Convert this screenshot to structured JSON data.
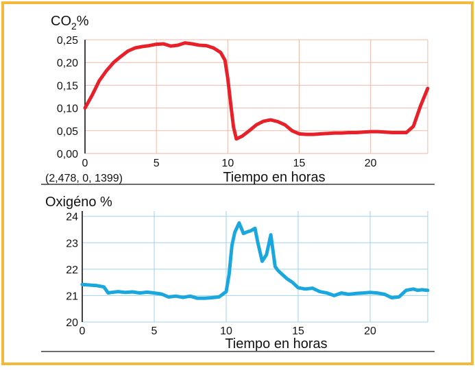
{
  "border_color": "#f2b93a",
  "chart_data": [
    {
      "type": "line",
      "title": "CO2%",
      "title_parts": {
        "prefix": "CO",
        "subscript": "2",
        "suffix": "%"
      },
      "xlabel": "Tiempo en horas",
      "ylabel": "",
      "annotation": "(2,478, 0, 1399)",
      "xlim": [
        0,
        24
      ],
      "ylim": [
        0,
        0.25
      ],
      "xticks": [
        0,
        5,
        10,
        15,
        20
      ],
      "xtick_labels": [
        "0",
        "5",
        "10",
        "15",
        "20"
      ],
      "yticks": [
        0,
        0.05,
        0.1,
        0.15,
        0.2,
        0.25
      ],
      "ytick_labels": [
        "0,00",
        "0,05",
        "0,10",
        "0,15",
        "0,20",
        "0,25"
      ],
      "grid": true,
      "grid_color": "#f0b8a8",
      "series": [
        {
          "color": "#e8202a",
          "x": [
            0,
            0.5,
            1,
            1.5,
            2,
            2.5,
            3,
            3.5,
            4,
            4.5,
            5,
            5.5,
            6,
            6.5,
            7,
            7.5,
            8,
            8.5,
            9,
            9.5,
            9.8,
            10,
            10.2,
            10.4,
            10.6,
            11,
            11.5,
            12,
            12.5,
            13,
            13.5,
            14,
            14.5,
            15,
            15.5,
            16,
            16.5,
            17,
            17.5,
            18,
            18.5,
            19,
            19.5,
            20,
            20.5,
            21,
            21.5,
            22,
            22.5,
            23,
            23.5,
            24
          ],
          "values": [
            0.1,
            0.128,
            0.16,
            0.182,
            0.2,
            0.213,
            0.225,
            0.232,
            0.235,
            0.237,
            0.24,
            0.241,
            0.236,
            0.238,
            0.243,
            0.241,
            0.238,
            0.237,
            0.232,
            0.222,
            0.205,
            0.165,
            0.11,
            0.058,
            0.032,
            0.038,
            0.05,
            0.063,
            0.071,
            0.074,
            0.07,
            0.063,
            0.05,
            0.043,
            0.042,
            0.042,
            0.043,
            0.044,
            0.045,
            0.045,
            0.046,
            0.046,
            0.047,
            0.048,
            0.048,
            0.047,
            0.046,
            0.046,
            0.046,
            0.06,
            0.105,
            0.143
          ]
        }
      ]
    },
    {
      "type": "line",
      "title": "Oxigéno %",
      "xlabel": "Tiempo en horas",
      "ylabel": "",
      "xlim": [
        0,
        24
      ],
      "ylim": [
        20,
        24.2
      ],
      "xticks": [
        0,
        5,
        10,
        15,
        20
      ],
      "xtick_labels": [
        "0",
        "5",
        "10",
        "15",
        "20"
      ],
      "yticks": [
        20,
        21,
        22,
        23,
        24
      ],
      "ytick_labels": [
        "20",
        "21",
        "22",
        "23",
        "24"
      ],
      "grid": true,
      "grid_color": "#9fd2ec",
      "series": [
        {
          "color": "#19a7de",
          "x": [
            0,
            0.5,
            1,
            1.5,
            1.8,
            2,
            2.5,
            3,
            3.5,
            4,
            4.5,
            5,
            5.5,
            6,
            6.5,
            7,
            7.5,
            8,
            8.5,
            9,
            9.5,
            10,
            10.2,
            10.4,
            10.6,
            10.9,
            11.2,
            11.4,
            11.7,
            12,
            12.2,
            12.5,
            12.8,
            13.1,
            13.4,
            13.6,
            13.9,
            14.2,
            14.6,
            15,
            15.5,
            16,
            16.5,
            17,
            17.5,
            18,
            18.5,
            19,
            19.5,
            20,
            20.5,
            21,
            21.5,
            22,
            22.5,
            23,
            23.3,
            23.6,
            24
          ],
          "values": [
            21.42,
            21.4,
            21.38,
            21.33,
            21.1,
            21.12,
            21.15,
            21.12,
            21.14,
            21.1,
            21.13,
            21.1,
            21.06,
            20.95,
            20.98,
            20.93,
            20.98,
            20.9,
            20.9,
            20.92,
            20.95,
            21.15,
            21.8,
            22.9,
            23.4,
            23.75,
            23.35,
            23.4,
            23.45,
            23.55,
            23.0,
            22.3,
            22.55,
            23.3,
            22.1,
            21.95,
            21.8,
            21.65,
            21.5,
            21.3,
            21.25,
            21.28,
            21.15,
            21.1,
            21.0,
            21.1,
            21.05,
            21.08,
            21.1,
            21.12,
            21.1,
            21.05,
            20.92,
            20.95,
            21.2,
            21.25,
            21.2,
            21.22,
            21.2
          ]
        }
      ]
    }
  ]
}
